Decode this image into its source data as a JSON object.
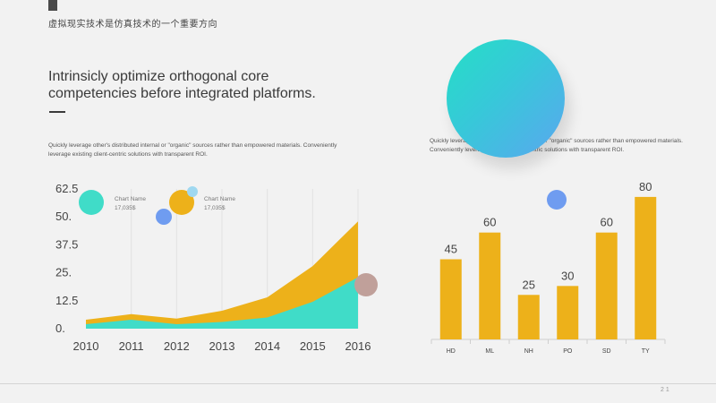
{
  "slide": {
    "header_title": "虚拟现实技术是仿真技术的一个重要方向",
    "headline": "Intrinsicly optimize orthogonal core competencies before integrated platforms.",
    "body_left": "Quickly leverage other's distributed internal or \"organic\" sources rather than empowered materials. Conveniently leverage existing client-centric solutions with transparent ROI.",
    "body_right": "Quickly leverage other's distributed internal or \"organic\" sources rather than empowered materials. Conveniently leverage existing client-centric solutions with transparent ROI.",
    "page_number": "2 1"
  },
  "colors": {
    "teal": "#40dcc8",
    "yellow": "#edb11a",
    "blue_circle": "#6f9cf0",
    "mauve_circle": "#c0a09a"
  },
  "legend": [
    {
      "name": "Chart Name",
      "value": "17,035$",
      "color": "#40dcc8"
    },
    {
      "name": "Chart Name",
      "value": "17,035$",
      "color": "#edb11a"
    }
  ],
  "chart_data": [
    {
      "type": "area",
      "x": [
        "2010",
        "2011",
        "2012",
        "2013",
        "2014",
        "2015",
        "2016"
      ],
      "y_ticks": [
        "0.",
        "12.5",
        "25.",
        "37.5",
        "50.",
        "62.5"
      ],
      "ylim": [
        0,
        62.5
      ],
      "stacked": true,
      "series": [
        {
          "color": "#40dcc8",
          "values": [
            2,
            4,
            2,
            3,
            5,
            12,
            23
          ]
        },
        {
          "color": "#edb11a",
          "values": [
            2,
            2.5,
            2.5,
            5,
            9,
            16,
            25
          ]
        }
      ]
    },
    {
      "type": "bar",
      "categories": [
        "HD",
        "ML",
        "NH",
        "PO",
        "SD",
        "TY"
      ],
      "values": [
        45,
        60,
        25,
        30,
        60,
        80
      ],
      "labels": [
        "45",
        "60",
        "25",
        "30",
        "60",
        "80"
      ],
      "ylim": [
        0,
        90
      ],
      "color": "#edb11a"
    }
  ]
}
